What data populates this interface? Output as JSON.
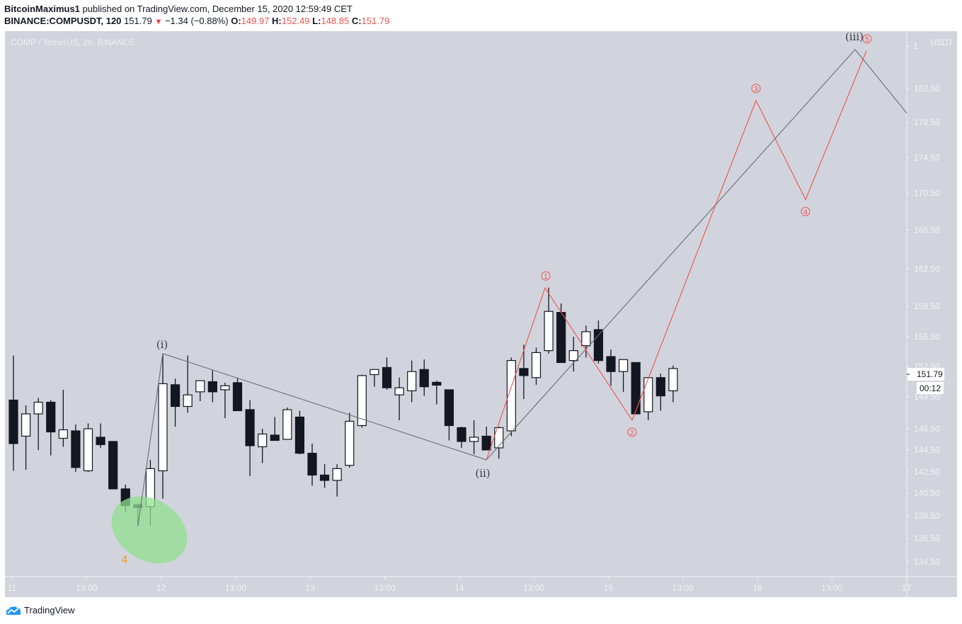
{
  "header": {
    "author": "BitcoinMaximus1",
    "published_text": "published on TradingView.com, December 15, 2020 12:59:49 CET",
    "symbol_line": "BINANCE:COMPUSDT, 120",
    "last_price": "151.79",
    "change": "−1.34 (−0.88%)",
    "open_label": "O:",
    "open": "149.97",
    "high_label": "H:",
    "high": "152.49",
    "low_label": "L:",
    "low": "148.85",
    "close_label": "C:",
    "close": "151.79"
  },
  "chart_title": "COMP / TetherUS, 2h, BINANCE",
  "price_axis": {
    "currency": "USDT",
    "top_label": "1",
    "current_price": "151.79",
    "countdown": "00:12"
  },
  "footer": {
    "brand": "TradingView"
  },
  "colors": {
    "background": "#d1d4dc",
    "bull_candle": "#ffffff",
    "bear_candle": "#131722",
    "wave_minor": "#ef5350",
    "wave_major": "#6b6e76",
    "highlight_ellipse": "#90e090",
    "label_orange": "#ff9800"
  },
  "chart_data": {
    "type": "candlestick",
    "title": "COMP / TetherUS, 2h, BINANCE",
    "xlabel": "",
    "ylabel": "USDT",
    "x_tick_labels": [
      "11",
      "13:00",
      "12",
      "13:00",
      "13",
      "13:00",
      "14",
      "13:00",
      "15",
      "13:00",
      "16",
      "13:00",
      "17"
    ],
    "y_tick_labels": [
      "182.50",
      "178.50",
      "174.50",
      "170.50",
      "166.50",
      "162.50",
      "158.50",
      "155.50",
      "152.50",
      "149.50",
      "146.50",
      "144.50",
      "142.50",
      "140.50",
      "138.50",
      "136.50",
      "134.50"
    ],
    "ylim": [
      133.5,
      186
    ],
    "grid": false,
    "candles_ohlc_approx": [
      [
        149.2,
        153.6,
        142.6,
        145.1
      ],
      [
        145.8,
        148.7,
        142.7,
        147.9
      ],
      [
        147.9,
        149.4,
        144.5,
        149.0
      ],
      [
        149.0,
        149.2,
        144.0,
        146.2
      ],
      [
        145.6,
        150.2,
        144.8,
        146.4
      ],
      [
        146.3,
        146.9,
        142.5,
        142.9
      ],
      [
        142.6,
        147.0,
        142.5,
        146.5
      ],
      [
        145.7,
        147.0,
        144.7,
        145.0
      ],
      [
        145.3,
        145.3,
        141.6,
        140.9
      ],
      [
        140.9,
        141.3,
        138.8,
        139.4
      ],
      [
        139.4,
        139.6,
        137.6,
        139.3
      ],
      [
        139.3,
        143.6,
        137.6,
        142.8
      ],
      [
        142.6,
        153.8,
        140.0,
        150.8
      ],
      [
        150.7,
        151.3,
        146.7,
        148.6
      ],
      [
        148.6,
        153.6,
        148.0,
        149.7
      ],
      [
        150.0,
        151.1,
        149.1,
        151.1
      ],
      [
        151.0,
        152.1,
        149.0,
        150.0
      ],
      [
        150.2,
        150.9,
        147.5,
        150.6
      ],
      [
        150.9,
        151.4,
        148.3,
        148.2
      ],
      [
        148.3,
        149.2,
        142.1,
        144.9
      ],
      [
        144.8,
        146.5,
        143.3,
        146.0
      ],
      [
        145.9,
        147.6,
        145.6,
        145.4
      ],
      [
        145.5,
        148.5,
        147.4,
        148.3
      ],
      [
        147.6,
        148.2,
        144.1,
        144.2
      ],
      [
        144.2,
        145.1,
        141.2,
        142.2
      ],
      [
        142.2,
        143.2,
        141.0,
        141.7
      ],
      [
        141.7,
        143.2,
        140.2,
        142.8
      ],
      [
        143.1,
        148.0,
        142.9,
        147.2
      ],
      [
        146.8,
        151.7,
        146.6,
        151.6
      ],
      [
        151.7,
        152.2,
        150.5,
        152.2
      ],
      [
        152.4,
        153.4,
        150.2,
        150.4
      ],
      [
        149.7,
        151.4,
        147.3,
        150.4
      ],
      [
        150.1,
        153.1,
        149.0,
        152.0
      ],
      [
        152.2,
        153.2,
        149.6,
        150.5
      ],
      [
        150.9,
        151.1,
        148.8,
        150.7
      ],
      [
        150.2,
        150.2,
        145.4,
        146.8
      ],
      [
        146.6,
        146.7,
        144.7,
        145.3
      ],
      [
        145.3,
        147.3,
        144.1,
        145.7
      ],
      [
        145.8,
        146.7,
        144.6,
        144.5
      ],
      [
        144.7,
        146.7,
        143.7,
        146.6
      ],
      [
        146.3,
        153.4,
        145.8,
        153.1
      ],
      [
        152.3,
        154.7,
        149.3,
        151.6
      ],
      [
        151.4,
        154.4,
        150.7,
        153.9
      ],
      [
        154.1,
        160.5,
        153.8,
        158.0
      ],
      [
        157.9,
        158.8,
        152.9,
        152.9
      ],
      [
        153.1,
        155.5,
        152.0,
        154.1
      ],
      [
        154.6,
        156.6,
        153.4,
        156.0
      ],
      [
        156.2,
        157.1,
        152.8,
        153.1
      ],
      [
        153.5,
        154.2,
        150.6,
        152.0
      ],
      [
        152.0,
        153.1,
        150.0,
        153.2
      ],
      [
        152.9,
        152.9,
        148.0,
        147.9
      ],
      [
        148.1,
        151.1,
        147.3,
        151.4
      ],
      [
        151.4,
        151.8,
        148.2,
        149.6
      ],
      [
        150.1,
        152.6,
        149.0,
        152.3
      ]
    ],
    "wave_labels": [
      {
        "label": "(i)",
        "price": 153.8,
        "series": "major"
      },
      {
        "label": "(ii)",
        "price": 143.6,
        "series": "major"
      },
      {
        "label": "(iii)",
        "price": 185.5,
        "series": "major"
      },
      {
        "label": "4",
        "price": 137.6,
        "series": "prior"
      },
      {
        "label": "1",
        "price": 160.5,
        "series": "minor"
      },
      {
        "label": "2",
        "price": 147.2,
        "series": "minor"
      },
      {
        "label": "3",
        "price": 181.0,
        "series": "minor"
      },
      {
        "label": "4",
        "price": 170.0,
        "series": "minor"
      },
      {
        "label": "5",
        "price": 185.5,
        "series": "minor"
      }
    ],
    "annotations": [
      "green ellipse highlighting wave 4 low"
    ]
  }
}
